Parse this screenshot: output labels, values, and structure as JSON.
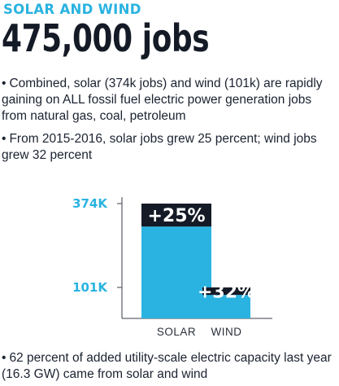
{
  "header": {
    "kicker": "SOLAR AND WIND",
    "headline": "475,000 jobs"
  },
  "bullets": [
    {
      "marker": "•",
      "text": "Combined, solar (374k jobs) and wind (101k) are rapidly gaining on ALL fossil fuel electric power generation jobs from natural gas, coal, petroleum"
    },
    {
      "marker": "•",
      "text": "From 2015-2016, solar jobs grew 25 percent; wind jobs grew 32 percent"
    },
    {
      "marker": "•",
      "text": "62 percent of added utility-scale electric capacity last year (16.3 GW) came from solar and wind"
    }
  ],
  "colors": {
    "accent": "#2ab3e0",
    "dark": "#141a26",
    "text": "#1b2230"
  },
  "chart_data": {
    "type": "bar",
    "categories": [
      "SOLAR",
      "WIND"
    ],
    "values": [
      374,
      101
    ],
    "growth_labels": [
      "+25%",
      "+32%"
    ],
    "growth_rates": [
      0.25,
      0.32
    ],
    "ytick_values": [
      101,
      374
    ],
    "ytick_labels": [
      "101K",
      "374K"
    ],
    "ylim": [
      0,
      374
    ],
    "grid": false,
    "title": "",
    "xlabel": "",
    "ylabel": ""
  }
}
